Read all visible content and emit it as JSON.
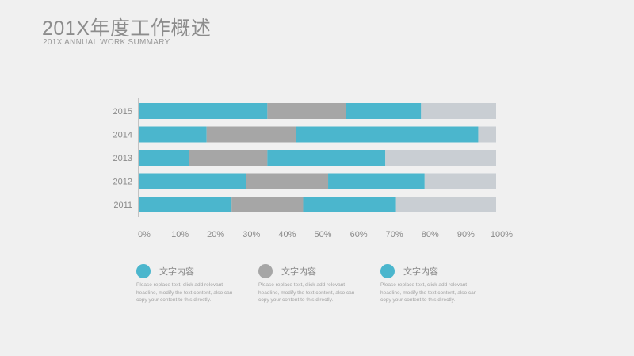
{
  "header": {
    "title": "201X年度工作概述",
    "subtitle": "201X ANNUAL WORK SUMMARY"
  },
  "legend": [
    {
      "label": "文字内容",
      "color": "#4bb6cd",
      "desc": "Please replace text, click add relevant headline, modify the text content, also can copy your content to this directly."
    },
    {
      "label": "文字内容",
      "color": "#a6a6a6",
      "desc": "Please replace text, click add relevant headline, modify the text content, also can copy your content to this directly."
    },
    {
      "label": "文字内容",
      "color": "#4bb6cd",
      "desc": "Please replace text, click add relevant headline, modify the text content, also can copy your content to this directly."
    }
  ],
  "chart_data": {
    "type": "bar",
    "orientation": "horizontal",
    "stacked": true,
    "categories": [
      "2015",
      "2014",
      "2013",
      "2012",
      "2011"
    ],
    "series": [
      {
        "values": [
          36,
          19,
          14,
          30,
          26
        ],
        "color": "#4bb6cd"
      },
      {
        "values": [
          22,
          25,
          22,
          23,
          20
        ],
        "color": "#a6a6a6"
      },
      {
        "values": [
          21,
          51,
          33,
          27,
          26
        ],
        "color": "#4bb6cd"
      },
      {
        "values": [
          21,
          5,
          31,
          20,
          28
        ],
        "color": "#c9ced3"
      }
    ],
    "xticks": [
      "0%",
      "10%",
      "20%",
      "30%",
      "40%",
      "50%",
      "60%",
      "70%",
      "80%",
      "90%",
      "100%"
    ],
    "xlim": [
      0,
      100
    ],
    "grid": false,
    "axis_color": "#b4b4b4"
  }
}
